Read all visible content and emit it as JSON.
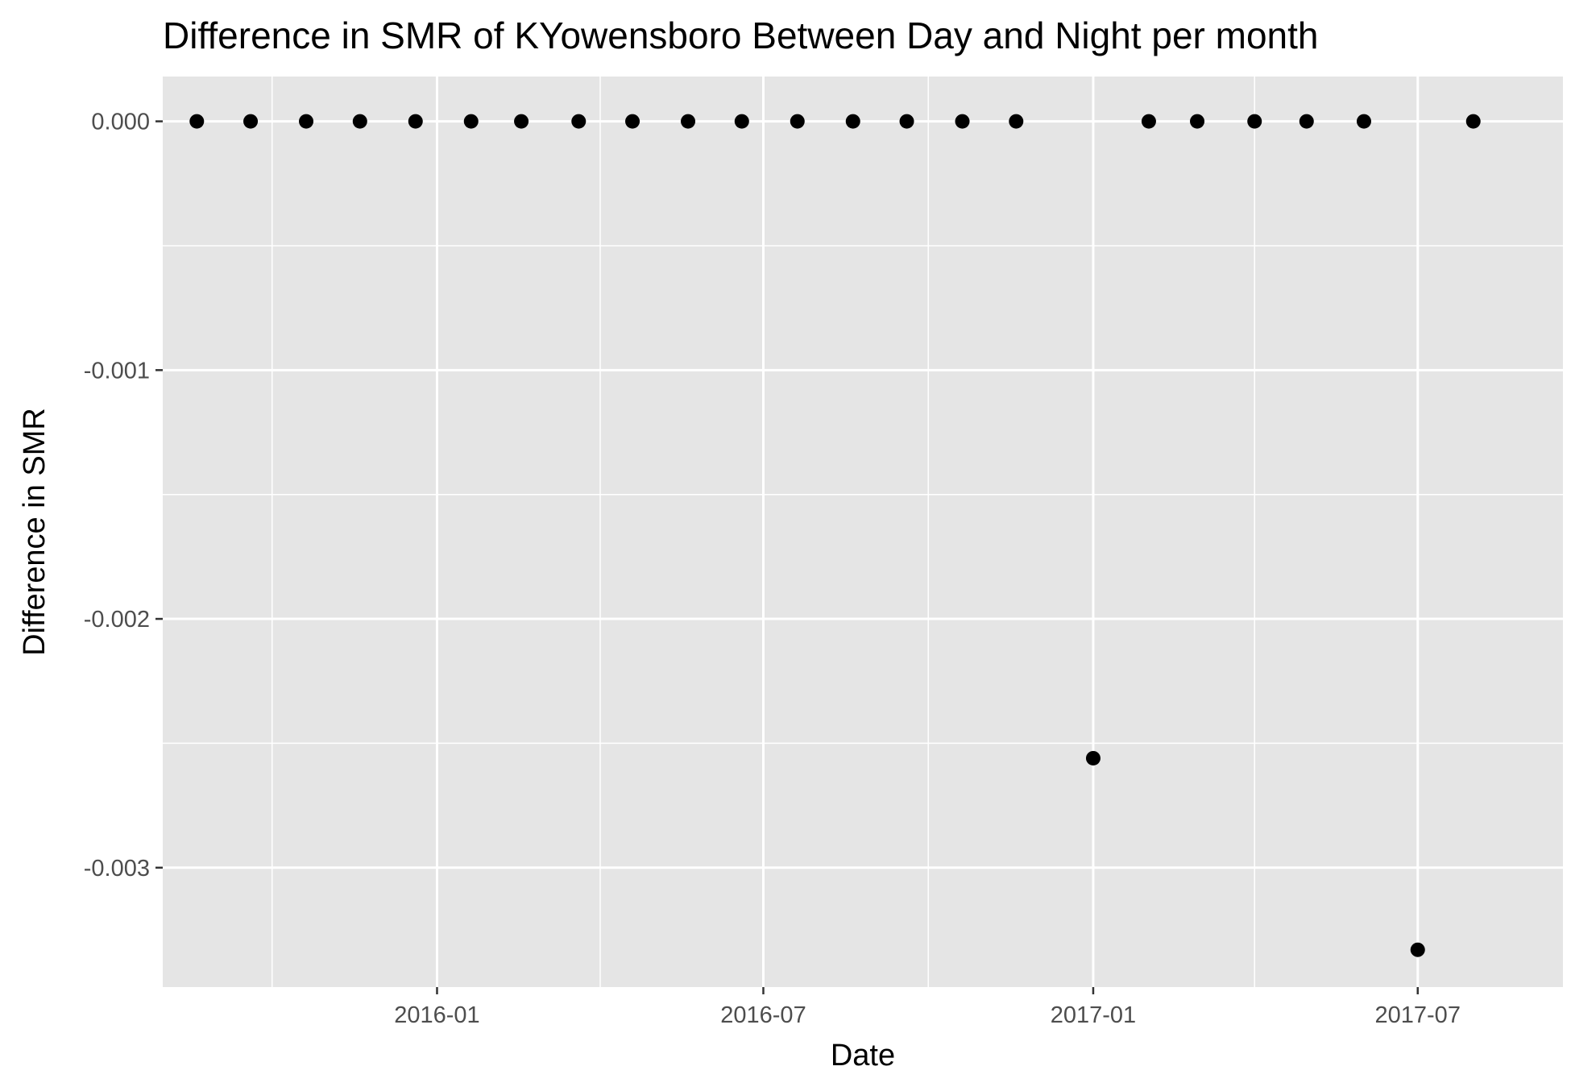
{
  "chart_data": {
    "type": "scatter",
    "title": "Difference in SMR of KYowensboro Between Day and Night per month",
    "xlabel": "Date",
    "ylabel": "Difference in SMR",
    "x_axis_type": "date",
    "xlim": [
      "2015-08-01",
      "2017-09-20"
    ],
    "ylim": [
      -0.00348,
      0.00018
    ],
    "x_ticks": [
      {
        "value": "2016-01-01",
        "label": "2016-01"
      },
      {
        "value": "2016-07-01",
        "label": "2016-07"
      },
      {
        "value": "2017-01-01",
        "label": "2017-01"
      },
      {
        "value": "2017-07-01",
        "label": "2017-07"
      }
    ],
    "y_ticks": [
      {
        "value": 0,
        "label": "0.000"
      },
      {
        "value": -0.001,
        "label": "-0.001"
      },
      {
        "value": -0.002,
        "label": "-0.002"
      },
      {
        "value": -0.003,
        "label": "-0.003"
      }
    ],
    "grid": true,
    "legend": "none",
    "series": [
      {
        "points": [
          {
            "x": "2015-08-20",
            "y": 0
          },
          {
            "x": "2015-09-19",
            "y": 0
          },
          {
            "x": "2015-10-20",
            "y": 0
          },
          {
            "x": "2015-11-19",
            "y": 0
          },
          {
            "x": "2015-12-20",
            "y": 0
          },
          {
            "x": "2016-01-20",
            "y": 0
          },
          {
            "x": "2016-02-17",
            "y": 0
          },
          {
            "x": "2016-03-20",
            "y": 0
          },
          {
            "x": "2016-04-19",
            "y": 0
          },
          {
            "x": "2016-05-20",
            "y": 0
          },
          {
            "x": "2016-06-19",
            "y": 0
          },
          {
            "x": "2016-07-20",
            "y": 0
          },
          {
            "x": "2016-08-20",
            "y": 0
          },
          {
            "x": "2016-09-19",
            "y": 0
          },
          {
            "x": "2016-10-20",
            "y": 0
          },
          {
            "x": "2016-11-19",
            "y": 0
          },
          {
            "x": "2017-01-01",
            "y": -0.00256
          },
          {
            "x": "2017-02-01",
            "y": 0
          },
          {
            "x": "2017-02-28",
            "y": 0
          },
          {
            "x": "2017-04-01",
            "y": 0
          },
          {
            "x": "2017-04-30",
            "y": 0
          },
          {
            "x": "2017-06-01",
            "y": 0
          },
          {
            "x": "2017-07-01",
            "y": -0.00333
          },
          {
            "x": "2017-08-01",
            "y": 0
          }
        ]
      }
    ]
  },
  "colors": {
    "panel_background": "#e5e5e5",
    "grid": "#ffffff",
    "point": "#000000",
    "tick_label": "#4d4d4d"
  }
}
